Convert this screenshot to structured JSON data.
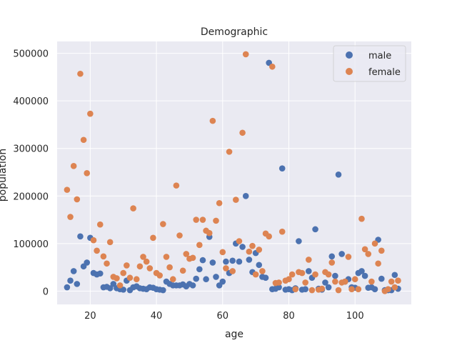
{
  "chart_data": {
    "type": "scatter",
    "title": "Demographic",
    "xlabel": "age",
    "ylabel": "population",
    "xlim": [
      10,
      117
    ],
    "ylim": [
      -28000,
      525000
    ],
    "xticks": [
      20,
      40,
      60,
      80,
      100
    ],
    "yticks": [
      0,
      100000,
      200000,
      300000,
      400000,
      500000
    ],
    "grid": true,
    "legend_placement": "top-right",
    "series": [
      {
        "name": "male",
        "color": "#4c72b0",
        "points": [
          [
            13,
            8000
          ],
          [
            14,
            22000
          ],
          [
            15,
            42000
          ],
          [
            16,
            15000
          ],
          [
            17,
            115000
          ],
          [
            18,
            52000
          ],
          [
            19,
            60000
          ],
          [
            20,
            112000
          ],
          [
            21,
            38000
          ],
          [
            22,
            35000
          ],
          [
            23,
            37000
          ],
          [
            24,
            8000
          ],
          [
            25,
            9000
          ],
          [
            26,
            6000
          ],
          [
            27,
            15000
          ],
          [
            28,
            6000
          ],
          [
            29,
            4000
          ],
          [
            30,
            3000
          ],
          [
            31,
            22000
          ],
          [
            32,
            2000
          ],
          [
            33,
            8000
          ],
          [
            34,
            10000
          ],
          [
            35,
            6000
          ],
          [
            36,
            5000
          ],
          [
            37,
            4000
          ],
          [
            38,
            8000
          ],
          [
            39,
            7000
          ],
          [
            40,
            4000
          ],
          [
            41,
            3000
          ],
          [
            42,
            2000
          ],
          [
            43,
            20000
          ],
          [
            44,
            15000
          ],
          [
            45,
            12000
          ],
          [
            46,
            12000
          ],
          [
            47,
            12000
          ],
          [
            48,
            14000
          ],
          [
            49,
            10000
          ],
          [
            50,
            15000
          ],
          [
            51,
            12000
          ],
          [
            52,
            26000
          ],
          [
            53,
            46000
          ],
          [
            54,
            65000
          ],
          [
            55,
            25000
          ],
          [
            56,
            114000
          ],
          [
            57,
            60000
          ],
          [
            58,
            30000
          ],
          [
            59,
            12000
          ],
          [
            60,
            20000
          ],
          [
            61,
            62000
          ],
          [
            62,
            38000
          ],
          [
            63,
            64000
          ],
          [
            64,
            100000
          ],
          [
            65,
            62000
          ],
          [
            66,
            93000
          ],
          [
            67,
            200000
          ],
          [
            68,
            66000
          ],
          [
            69,
            40000
          ],
          [
            70,
            80000
          ],
          [
            71,
            55000
          ],
          [
            72,
            30000
          ],
          [
            73,
            28000
          ],
          [
            74,
            480000
          ],
          [
            75,
            4000
          ],
          [
            76,
            5000
          ],
          [
            77,
            8000
          ],
          [
            78,
            258000
          ],
          [
            79,
            3000
          ],
          [
            80,
            4000
          ],
          [
            81,
            2000
          ],
          [
            82,
            6000
          ],
          [
            83,
            105000
          ],
          [
            84,
            3000
          ],
          [
            85,
            4000
          ],
          [
            86,
            42000
          ],
          [
            87,
            28000
          ],
          [
            88,
            130000
          ],
          [
            89,
            5000
          ],
          [
            90,
            3000
          ],
          [
            91,
            18000
          ],
          [
            92,
            8000
          ],
          [
            93,
            73000
          ],
          [
            94,
            32000
          ],
          [
            95,
            245000
          ],
          [
            96,
            78000
          ],
          [
            97,
            20000
          ],
          [
            98,
            25000
          ],
          [
            99,
            8000
          ],
          [
            100,
            7000
          ],
          [
            101,
            38000
          ],
          [
            102,
            42000
          ],
          [
            103,
            32000
          ],
          [
            104,
            7000
          ],
          [
            105,
            8000
          ],
          [
            106,
            4000
          ],
          [
            107,
            108000
          ],
          [
            108,
            26000
          ],
          [
            109,
            2000
          ],
          [
            110,
            2000
          ],
          [
            111,
            2000
          ],
          [
            112,
            34000
          ],
          [
            113,
            5000
          ]
        ]
      },
      {
        "name": "female",
        "color": "#dd8452",
        "points": [
          [
            13,
            213000
          ],
          [
            14,
            156000
          ],
          [
            15,
            263000
          ],
          [
            16,
            193000
          ],
          [
            17,
            457000
          ],
          [
            18,
            318000
          ],
          [
            19,
            248000
          ],
          [
            20,
            373000
          ],
          [
            21,
            107000
          ],
          [
            22,
            85000
          ],
          [
            23,
            140000
          ],
          [
            24,
            73000
          ],
          [
            25,
            58000
          ],
          [
            26,
            103000
          ],
          [
            27,
            30000
          ],
          [
            28,
            27000
          ],
          [
            29,
            12000
          ],
          [
            30,
            38000
          ],
          [
            31,
            54000
          ],
          [
            32,
            28000
          ],
          [
            33,
            174000
          ],
          [
            34,
            25000
          ],
          [
            35,
            52000
          ],
          [
            36,
            72000
          ],
          [
            37,
            62000
          ],
          [
            38,
            48000
          ],
          [
            39,
            112000
          ],
          [
            40,
            38000
          ],
          [
            41,
            33000
          ],
          [
            42,
            141000
          ],
          [
            43,
            72000
          ],
          [
            44,
            50000
          ],
          [
            45,
            25000
          ],
          [
            46,
            222000
          ],
          [
            47,
            117000
          ],
          [
            48,
            43000
          ],
          [
            49,
            78000
          ],
          [
            50,
            68000
          ],
          [
            51,
            70000
          ],
          [
            52,
            150000
          ],
          [
            53,
            97000
          ],
          [
            54,
            150000
          ],
          [
            55,
            127000
          ],
          [
            56,
            122000
          ],
          [
            57,
            358000
          ],
          [
            58,
            148000
          ],
          [
            59,
            185000
          ],
          [
            60,
            82000
          ],
          [
            61,
            48000
          ],
          [
            62,
            293000
          ],
          [
            63,
            42000
          ],
          [
            64,
            192000
          ],
          [
            65,
            105000
          ],
          [
            66,
            333000
          ],
          [
            67,
            498000
          ],
          [
            68,
            83000
          ],
          [
            69,
            95000
          ],
          [
            70,
            35000
          ],
          [
            71,
            87000
          ],
          [
            72,
            42000
          ],
          [
            73,
            121000
          ],
          [
            74,
            115000
          ],
          [
            75,
            472000
          ],
          [
            76,
            17000
          ],
          [
            77,
            18000
          ],
          [
            78,
            125000
          ],
          [
            79,
            22000
          ],
          [
            80,
            25000
          ],
          [
            81,
            35000
          ],
          [
            82,
            4000
          ],
          [
            83,
            40000
          ],
          [
            84,
            38000
          ],
          [
            85,
            18000
          ],
          [
            86,
            66000
          ],
          [
            87,
            2000
          ],
          [
            88,
            35000
          ],
          [
            89,
            3000
          ],
          [
            90,
            5000
          ],
          [
            91,
            40000
          ],
          [
            92,
            35000
          ],
          [
            93,
            60000
          ],
          [
            94,
            20000
          ],
          [
            95,
            2000
          ],
          [
            96,
            18000
          ],
          [
            97,
            20000
          ],
          [
            98,
            72000
          ],
          [
            99,
            4000
          ],
          [
            100,
            25000
          ],
          [
            101,
            4000
          ],
          [
            102,
            152000
          ],
          [
            103,
            88000
          ],
          [
            104,
            78000
          ],
          [
            105,
            20000
          ],
          [
            106,
            100000
          ],
          [
            107,
            58000
          ],
          [
            108,
            85000
          ],
          [
            109,
            0
          ],
          [
            110,
            4000
          ],
          [
            111,
            20000
          ],
          [
            112,
            8000
          ],
          [
            113,
            22000
          ]
        ]
      }
    ]
  }
}
